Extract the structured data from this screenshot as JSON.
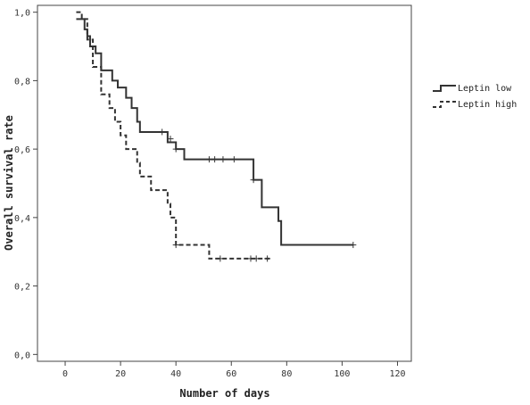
{
  "chart_data": {
    "type": "line",
    "xlabel": "Number of days",
    "ylabel": "Overall survival rate",
    "xlim": [
      -10,
      125
    ],
    "ylim": [
      -0.02,
      1.02
    ],
    "xticks": [
      "0",
      "20",
      "40",
      "60",
      "80",
      "100",
      "120"
    ],
    "xtick_values": [
      0,
      20,
      40,
      60,
      80,
      100,
      120
    ],
    "yticks": [
      "0,0",
      "0,2",
      "0,4",
      "0,6",
      "0,8",
      "1,0"
    ],
    "ytick_values": [
      0.0,
      0.2,
      0.4,
      0.6,
      0.8,
      1.0
    ],
    "grid": false,
    "legend_position": "right",
    "series": [
      {
        "name": "Leptin low",
        "style": "solid",
        "color": "#333333",
        "steps": [
          [
            4,
            0.98
          ],
          [
            7,
            0.95
          ],
          [
            8,
            0.93
          ],
          [
            9,
            0.9
          ],
          [
            11,
            0.88
          ],
          [
            13,
            0.83
          ],
          [
            17,
            0.8
          ],
          [
            19,
            0.78
          ],
          [
            22,
            0.75
          ],
          [
            24,
            0.72
          ],
          [
            26,
            0.68
          ],
          [
            27,
            0.65
          ],
          [
            37,
            0.62
          ],
          [
            40,
            0.6
          ],
          [
            43,
            0.57
          ],
          [
            68,
            0.51
          ],
          [
            71,
            0.43
          ],
          [
            77,
            0.39
          ],
          [
            78,
            0.32
          ],
          [
            104,
            0.32
          ]
        ],
        "censored": [
          [
            35,
            0.65
          ],
          [
            38,
            0.63
          ],
          [
            40,
            0.6
          ],
          [
            52,
            0.57
          ],
          [
            54,
            0.57
          ],
          [
            57,
            0.57
          ],
          [
            61,
            0.57
          ],
          [
            68,
            0.51
          ],
          [
            104,
            0.32
          ]
        ]
      },
      {
        "name": "Leptin high",
        "style": "dashed",
        "color": "#333333",
        "steps": [
          [
            4,
            1.0
          ],
          [
            6,
            0.98
          ],
          [
            8,
            0.92
          ],
          [
            10,
            0.84
          ],
          [
            13,
            0.76
          ],
          [
            16,
            0.72
          ],
          [
            18,
            0.68
          ],
          [
            20,
            0.64
          ],
          [
            22,
            0.6
          ],
          [
            26,
            0.56
          ],
          [
            27,
            0.52
          ],
          [
            31,
            0.48
          ],
          [
            37,
            0.44
          ],
          [
            38,
            0.4
          ],
          [
            40,
            0.32
          ],
          [
            52,
            0.28
          ],
          [
            74,
            0.28
          ]
        ],
        "censored": [
          [
            40,
            0.32
          ],
          [
            56,
            0.28
          ],
          [
            67,
            0.28
          ],
          [
            69,
            0.28
          ],
          [
            73,
            0.28
          ]
        ]
      }
    ]
  }
}
